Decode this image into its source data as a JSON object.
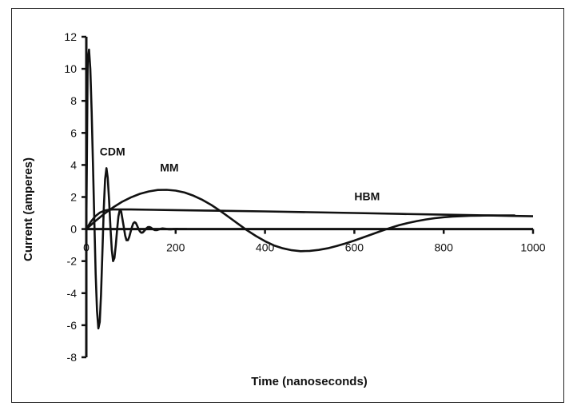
{
  "chart_data": {
    "type": "line",
    "title": "",
    "xlabel": "Time (nanoseconds)",
    "ylabel": "Current (amperes)",
    "xlim": [
      0,
      1000
    ],
    "ylim": [
      -8,
      12
    ],
    "x_ticks": [
      0,
      200,
      400,
      600,
      800,
      1000
    ],
    "y_ticks": [
      -8,
      -6,
      -4,
      -2,
      0,
      2,
      4,
      6,
      8,
      10,
      12
    ],
    "grid": false,
    "legend": "none",
    "series": [
      {
        "name": "CDM",
        "color": "#111111",
        "x": [
          0,
          3,
          6,
          9,
          12,
          15,
          18,
          21,
          24,
          27,
          30,
          33,
          36,
          39,
          42,
          45,
          48,
          51,
          54,
          57,
          60,
          63,
          66,
          69,
          72,
          75,
          78,
          81,
          84,
          87,
          90,
          93,
          96,
          99,
          102,
          105,
          108,
          111,
          114,
          117,
          120,
          123,
          126,
          129,
          132,
          135,
          138,
          141,
          144,
          147,
          150,
          153,
          156,
          159,
          162,
          165,
          168,
          171,
          174,
          177,
          180,
          183,
          186,
          189,
          192,
          195,
          198,
          201,
          204,
          207,
          210,
          213,
          216,
          219,
          222,
          225
        ],
        "y": [
          0,
          10.4,
          11.2,
          10.0,
          7.3,
          3.9,
          0.4,
          -2.8,
          -5.1,
          -6.2,
          -5.8,
          -4.1,
          -1.5,
          1.2,
          3.1,
          3.8,
          3.2,
          1.8,
          0.1,
          -1.3,
          -2.0,
          -1.8,
          -1.0,
          0.0,
          0.8,
          1.2,
          1.1,
          0.6,
          0.1,
          -0.4,
          -0.7,
          -0.7,
          -0.5,
          -0.2,
          0.1,
          0.35,
          0.43,
          0.38,
          0.2,
          0.0,
          -0.15,
          -0.23,
          -0.22,
          -0.14,
          -0.04,
          0.06,
          0.12,
          0.13,
          0.1,
          0.04,
          -0.02,
          -0.06,
          -0.07,
          -0.06,
          -0.03,
          0.0,
          0.03,
          0.04,
          0.03,
          0.02,
          0.0,
          -0.01,
          -0.02,
          -0.02,
          -0.01,
          0.0,
          0.0,
          0.01,
          0.01,
          0.0,
          0.0,
          0.0,
          0.0,
          0.0,
          0.0,
          0.0
        ]
      },
      {
        "name": "MM",
        "color": "#111111",
        "x": [
          0,
          20,
          40,
          60,
          80,
          100,
          120,
          140,
          160,
          180,
          200,
          220,
          240,
          260,
          280,
          300,
          320,
          340,
          360,
          380,
          400,
          420,
          440,
          460,
          480,
          500,
          520,
          540,
          560,
          580,
          600,
          620,
          640,
          660,
          680,
          700,
          720,
          740,
          760,
          780,
          800,
          820,
          840,
          860,
          880,
          900,
          920,
          940,
          960
        ],
        "y": [
          0.0,
          0.5,
          0.95,
          1.35,
          1.7,
          1.98,
          2.2,
          2.35,
          2.44,
          2.45,
          2.4,
          2.28,
          2.08,
          1.82,
          1.5,
          1.13,
          0.73,
          0.32,
          -0.08,
          -0.44,
          -0.76,
          -1.02,
          -1.2,
          -1.32,
          -1.38,
          -1.36,
          -1.3,
          -1.2,
          -1.06,
          -0.9,
          -0.72,
          -0.52,
          -0.32,
          -0.12,
          0.07,
          0.24,
          0.38,
          0.5,
          0.6,
          0.68,
          0.74,
          0.78,
          0.81,
          0.83,
          0.84,
          0.85,
          0.85,
          0.85,
          0.85
        ]
      },
      {
        "name": "HBM",
        "color": "#111111",
        "x": [
          0,
          10,
          20,
          30,
          40,
          50,
          60,
          70,
          80,
          100,
          150,
          200,
          300,
          400,
          500,
          600,
          700,
          800,
          900,
          1000
        ],
        "y": [
          0.0,
          0.45,
          0.8,
          1.02,
          1.14,
          1.2,
          1.22,
          1.22,
          1.22,
          1.22,
          1.2,
          1.18,
          1.14,
          1.1,
          1.05,
          1.0,
          0.95,
          0.9,
          0.85,
          0.8
        ]
      }
    ],
    "annotations": [
      {
        "text": "CDM",
        "x": 30,
        "y": 4.6
      },
      {
        "text": "MM",
        "x": 165,
        "y": 3.6
      },
      {
        "text": "HBM",
        "x": 600,
        "y": 1.8
      }
    ]
  }
}
